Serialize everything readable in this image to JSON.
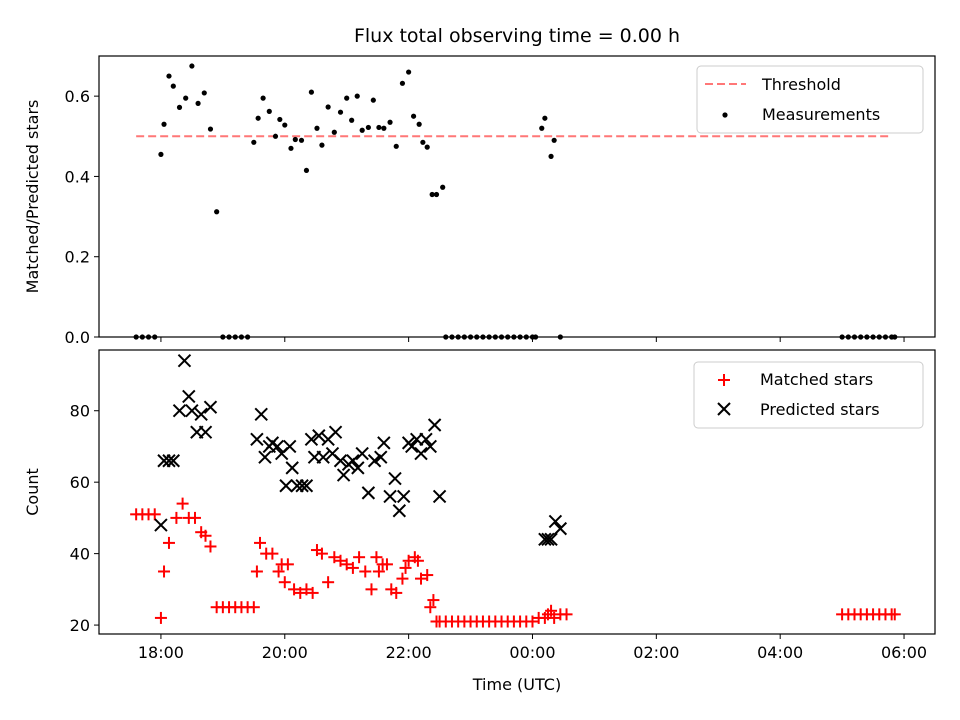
{
  "figure": {
    "title": "Flux total observing time = 0.00 h",
    "xlabel": "Time (UTC)"
  },
  "chart_data": [
    {
      "type": "scatter",
      "title": "Flux total observing time = 0.00 h",
      "xlabel": "",
      "ylabel": "Matched/Predicted stars",
      "x_unit": "hours UTC (24+ = next day)",
      "xlim": [
        17.0,
        30.5
      ],
      "ylim": [
        0.0,
        0.7
      ],
      "yticks": [
        0.0,
        0.2,
        0.4,
        0.6
      ],
      "ytick_labels": [
        "0.0",
        "0.2",
        "0.4",
        "0.6"
      ],
      "xticks": [
        18,
        20,
        22,
        24,
        26,
        28,
        30
      ],
      "xtick_labels": [
        "18:00",
        "20:00",
        "22:00",
        "00:00",
        "02:00",
        "04:00",
        "06:00"
      ],
      "legend_position": "top-right",
      "threshold": {
        "name": "Threshold",
        "y": 0.5,
        "x_start": 17.6,
        "x_end": 29.8,
        "color": "#ff7777"
      },
      "series": [
        {
          "name": "Measurements",
          "color": "#000000",
          "x": [
            17.6,
            17.7,
            17.8,
            17.9,
            18.0,
            18.05,
            18.13,
            18.2,
            18.3,
            18.4,
            18.5,
            18.6,
            18.7,
            18.8,
            18.9,
            19.0,
            19.1,
            19.2,
            19.3,
            19.4,
            19.5,
            19.57,
            19.65,
            19.75,
            19.85,
            19.92,
            20.0,
            20.1,
            20.17,
            20.27,
            20.35,
            20.43,
            20.52,
            20.6,
            20.7,
            20.8,
            20.9,
            21.0,
            21.08,
            21.17,
            21.25,
            21.35,
            21.43,
            21.52,
            21.6,
            21.7,
            21.8,
            21.9,
            22.0,
            22.08,
            22.17,
            22.23,
            22.3,
            22.38,
            22.45,
            22.55,
            22.6,
            22.7,
            22.8,
            22.9,
            23.0,
            23.1,
            23.2,
            23.3,
            23.4,
            23.5,
            23.6,
            23.7,
            23.8,
            23.9,
            24.0,
            24.05,
            24.15,
            24.2,
            24.3,
            24.35,
            24.45,
            29.0,
            29.1,
            29.2,
            29.3,
            29.4,
            29.5,
            29.6,
            29.7,
            29.8,
            29.85
          ],
          "y": [
            0.0,
            0.0,
            0.0,
            0.0,
            0.455,
            0.53,
            0.65,
            0.625,
            0.572,
            0.595,
            0.675,
            0.582,
            0.608,
            0.518,
            0.312,
            0.0,
            0.0,
            0.0,
            0.0,
            0.0,
            0.485,
            0.545,
            0.595,
            0.562,
            0.5,
            0.542,
            0.528,
            0.47,
            0.492,
            0.49,
            0.415,
            0.61,
            0.52,
            0.478,
            0.573,
            0.51,
            0.56,
            0.595,
            0.54,
            0.6,
            0.515,
            0.522,
            0.59,
            0.522,
            0.52,
            0.535,
            0.475,
            0.632,
            0.66,
            0.55,
            0.53,
            0.485,
            0.473,
            0.355,
            0.355,
            0.373,
            0.0,
            0.0,
            0.0,
            0.0,
            0.0,
            0.0,
            0.0,
            0.0,
            0.0,
            0.0,
            0.0,
            0.0,
            0.0,
            0.0,
            0.0,
            0.0,
            0.52,
            0.545,
            0.45,
            0.49,
            0.0,
            0.0,
            0.0,
            0.0,
            0.0,
            0.0,
            0.0,
            0.0,
            0.0,
            0.0,
            0.0
          ]
        }
      ]
    },
    {
      "type": "scatter",
      "title": "",
      "xlabel": "Time (UTC)",
      "ylabel": "Count",
      "x_unit": "hours UTC (24+ = next day)",
      "xlim": [
        17.0,
        30.5
      ],
      "ylim": [
        17.5,
        97.0
      ],
      "yticks": [
        20,
        40,
        60,
        80
      ],
      "ytick_labels": [
        "20",
        "40",
        "60",
        "80"
      ],
      "xticks": [
        18,
        20,
        22,
        24,
        26,
        28,
        30
      ],
      "xtick_labels": [
        "18:00",
        "20:00",
        "22:00",
        "00:00",
        "02:00",
        "04:00",
        "06:00"
      ],
      "legend_position": "top-right",
      "series": [
        {
          "name": "Matched stars",
          "marker": "+",
          "color": "#ff0000",
          "x": [
            17.6,
            17.7,
            17.8,
            17.9,
            18.0,
            18.05,
            18.13,
            18.25,
            18.35,
            18.45,
            18.55,
            18.65,
            18.72,
            18.8,
            18.9,
            19.0,
            19.1,
            19.2,
            19.3,
            19.4,
            19.5,
            19.55,
            19.6,
            19.7,
            19.8,
            19.9,
            19.95,
            20.0,
            20.05,
            20.15,
            20.25,
            20.35,
            20.45,
            20.52,
            20.6,
            20.7,
            20.8,
            20.9,
            21.0,
            21.1,
            21.2,
            21.3,
            21.4,
            21.48,
            21.52,
            21.58,
            21.65,
            21.72,
            21.8,
            21.9,
            21.95,
            22.0,
            22.1,
            22.15,
            22.2,
            22.3,
            22.35,
            22.4,
            22.45,
            22.5,
            22.6,
            22.7,
            22.8,
            22.9,
            23.0,
            23.1,
            23.2,
            23.3,
            23.4,
            23.5,
            23.6,
            23.7,
            23.8,
            23.9,
            24.0,
            24.1,
            24.2,
            24.25,
            24.3,
            24.35,
            24.45,
            24.55,
            29.0,
            29.1,
            29.2,
            29.3,
            29.4,
            29.5,
            29.6,
            29.7,
            29.8,
            29.85
          ],
          "y": [
            51,
            51,
            51,
            51,
            22,
            35,
            43,
            50,
            54,
            50,
            50,
            46,
            45,
            42,
            25,
            25,
            25,
            25,
            25,
            25,
            25,
            35,
            43,
            40,
            40,
            35,
            37,
            32,
            37,
            30,
            29,
            30,
            29,
            41,
            40,
            32,
            39,
            38,
            37,
            36,
            39,
            35,
            30,
            39,
            35,
            37,
            37,
            30,
            29,
            33,
            36,
            38,
            39,
            38,
            33,
            34,
            25,
            27,
            21,
            21,
            21,
            21,
            21,
            21,
            21,
            21,
            21,
            21,
            21,
            21,
            21,
            21,
            21,
            21,
            21,
            22,
            22,
            23,
            24,
            22,
            23,
            23,
            23,
            23,
            23,
            23,
            23,
            23,
            23,
            23,
            23,
            23
          ]
        },
        {
          "name": "Predicted stars",
          "marker": "x",
          "color": "#000000",
          "x": [
            18.0,
            18.05,
            18.13,
            18.2,
            18.3,
            18.38,
            18.45,
            18.5,
            18.58,
            18.65,
            18.72,
            18.8,
            19.55,
            19.62,
            19.68,
            19.75,
            19.8,
            19.88,
            19.95,
            20.02,
            20.08,
            20.12,
            20.2,
            20.28,
            20.35,
            20.43,
            20.48,
            20.55,
            20.62,
            20.7,
            20.77,
            20.82,
            20.9,
            20.95,
            21.03,
            21.1,
            21.18,
            21.25,
            21.35,
            21.45,
            21.55,
            21.6,
            21.7,
            21.78,
            21.85,
            21.92,
            22.0,
            22.05,
            22.13,
            22.2,
            22.28,
            22.35,
            22.42,
            22.5,
            24.2,
            24.25,
            24.3,
            24.37,
            24.45
          ],
          "y": [
            48,
            66,
            66,
            66,
            80,
            94,
            84,
            80,
            74,
            79,
            74,
            81,
            72,
            79,
            67,
            70,
            71,
            70,
            68,
            59,
            70,
            64,
            59,
            59,
            59,
            72,
            67,
            73,
            67,
            72,
            68,
            74,
            66,
            62,
            65,
            66,
            64,
            68,
            57,
            66,
            67,
            71,
            56,
            61,
            52,
            56,
            71,
            70,
            72,
            68,
            72,
            70,
            76,
            56,
            44,
            44,
            44,
            49,
            47
          ]
        }
      ]
    }
  ]
}
